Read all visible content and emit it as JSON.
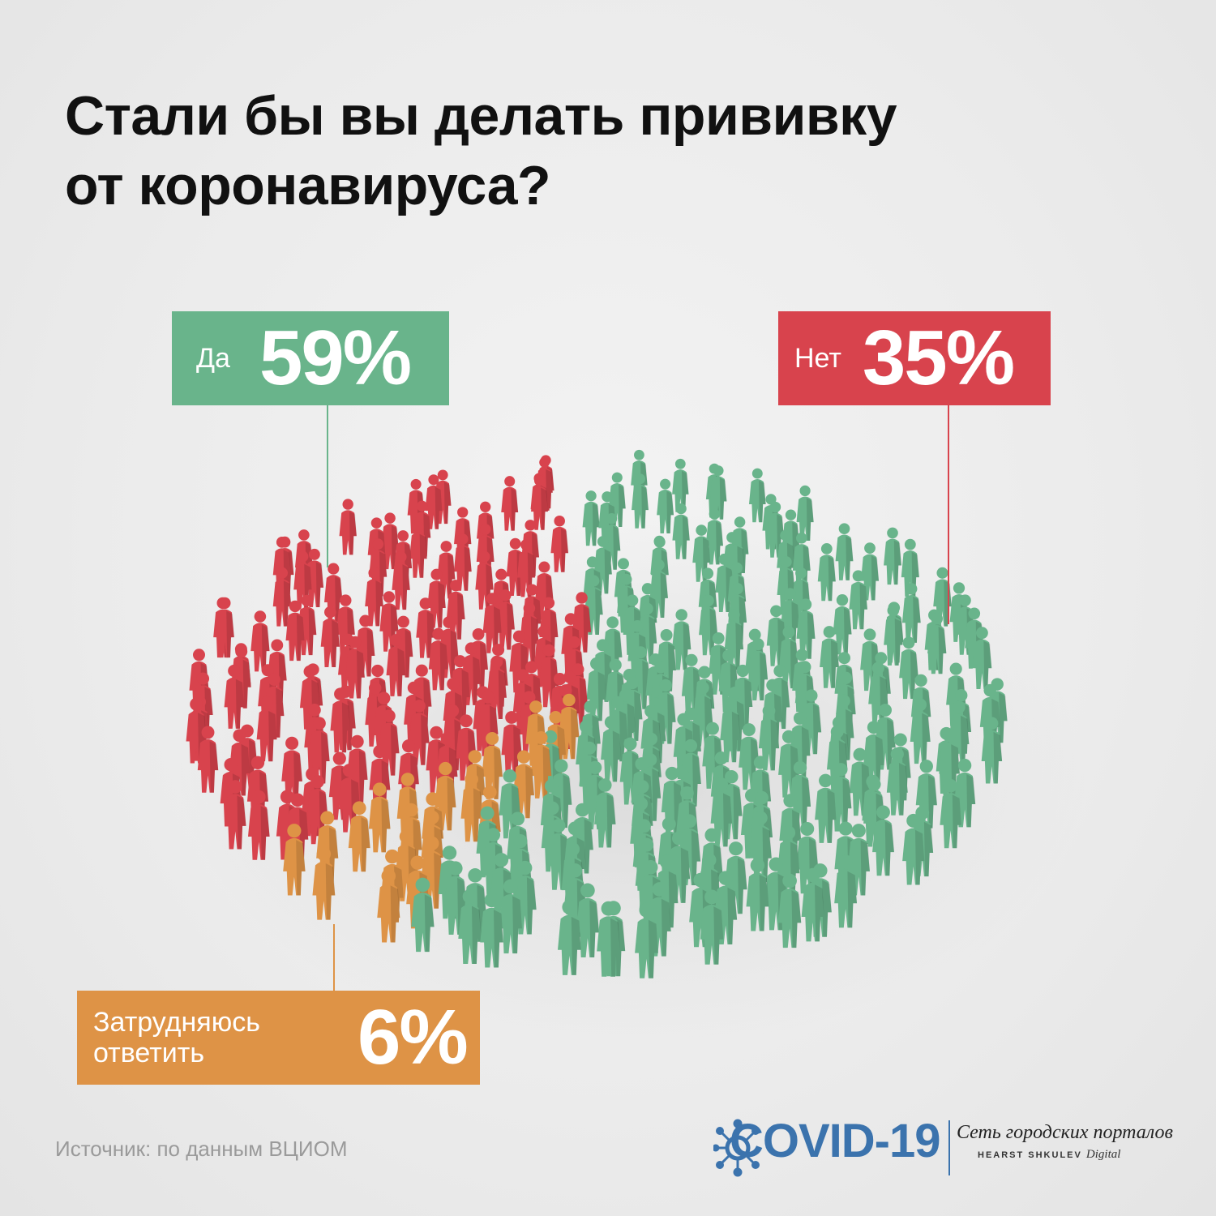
{
  "title": {
    "line1": "Стали бы вы делать прививку",
    "line2": "от коронавируса?"
  },
  "colors": {
    "yes": "#69b48b",
    "no": "#d8434d",
    "unsure": "#de9346",
    "brand": "#3b73ad"
  },
  "chart_data": {
    "type": "pie",
    "title": "Стали бы вы делать прививку от коронавируса?",
    "slices": [
      {
        "label": "Да",
        "value": 59,
        "display": "59%",
        "color": "#69b48b"
      },
      {
        "label": "Нет",
        "value": 35,
        "display": "35%",
        "color": "#d8434d"
      },
      {
        "label": "Затрудняюсь ответить",
        "value": 6,
        "display": "6%",
        "color": "#de9346"
      }
    ]
  },
  "labels": {
    "yes": {
      "word": "Да",
      "pct": "59%"
    },
    "no": {
      "word": "Нет",
      "pct": "35%"
    },
    "unsure": {
      "word_line1": "Затрудняюсь",
      "word_line2": "ответить",
      "pct": "6%"
    }
  },
  "source": "Источник: по данным ВЦИОМ",
  "logo": {
    "name": "COVID-19",
    "network": "Сеть городских порталов",
    "company": "HEARST SHKULEV",
    "company_suffix": "Digital"
  }
}
